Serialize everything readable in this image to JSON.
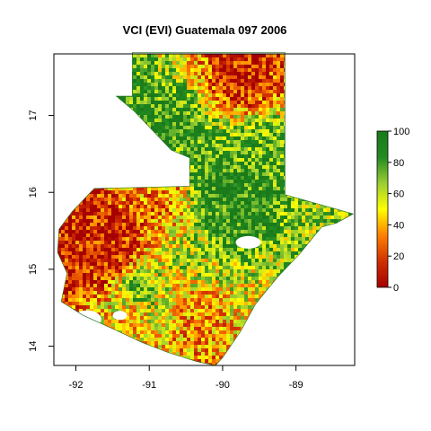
{
  "title": "VCI (EVI) Guatemala 097 2006",
  "x_axis": {
    "ticks": [
      {
        "value": -92,
        "label": "-92"
      },
      {
        "value": -91,
        "label": "-91"
      },
      {
        "value": -90,
        "label": "-90"
      },
      {
        "value": -89,
        "label": "-89"
      }
    ],
    "range": [
      -92.3,
      -88.2
    ]
  },
  "y_axis": {
    "ticks": [
      {
        "value": 14,
        "label": "14"
      },
      {
        "value": 15,
        "label": "15"
      },
      {
        "value": 16,
        "label": "16"
      },
      {
        "value": 17,
        "label": "17"
      }
    ],
    "range": [
      13.75,
      17.8
    ]
  },
  "legend": {
    "labels": [
      "0",
      "20",
      "40",
      "60",
      "80",
      "100"
    ],
    "range": [
      0,
      100
    ],
    "colors": [
      "#a50000",
      "#d13000",
      "#ff8000",
      "#ffff00",
      "#9acd32",
      "#228b22",
      "#1a7a1a"
    ]
  },
  "map": {
    "region": "Guatemala",
    "outline_lonlat": [
      [
        -91.23,
        17.82
      ],
      [
        -89.15,
        17.82
      ],
      [
        -89.15,
        15.97
      ],
      [
        -88.22,
        15.72
      ],
      [
        -88.45,
        15.6
      ],
      [
        -88.65,
        15.55
      ],
      [
        -88.95,
        15.2
      ],
      [
        -89.25,
        14.9
      ],
      [
        -89.55,
        14.55
      ],
      [
        -89.75,
        14.2
      ],
      [
        -90.0,
        13.85
      ],
      [
        -90.1,
        13.75
      ],
      [
        -90.35,
        13.8
      ],
      [
        -90.75,
        13.92
      ],
      [
        -91.1,
        14.05
      ],
      [
        -91.55,
        14.25
      ],
      [
        -91.9,
        14.4
      ],
      [
        -92.2,
        14.58
      ],
      [
        -92.12,
        14.95
      ],
      [
        -92.25,
        15.22
      ],
      [
        -92.23,
        15.52
      ],
      [
        -92.05,
        15.75
      ],
      [
        -91.75,
        16.05
      ],
      [
        -90.45,
        16.08
      ],
      [
        -90.45,
        16.45
      ],
      [
        -90.7,
        16.55
      ],
      [
        -91.2,
        17.05
      ],
      [
        -91.45,
        17.25
      ],
      [
        -90.98,
        17.25
      ],
      [
        -90.98,
        17.25
      ],
      [
        -91.23,
        17.25
      ]
    ],
    "zones": [
      {
        "lon": -89.75,
        "lat": 17.45,
        "r": 0.55,
        "vci": 12
      },
      {
        "lon": -91.55,
        "lat": 15.25,
        "r": 0.6,
        "vci": 10
      },
      {
        "lon": -91.7,
        "lat": 15.05,
        "r": 0.45,
        "vci": 15
      },
      {
        "lon": -90.35,
        "lat": 14.45,
        "r": 0.45,
        "vci": 35
      },
      {
        "lon": -91.3,
        "lat": 14.45,
        "r": 0.4,
        "vci": 45
      },
      {
        "lon": -89.4,
        "lat": 14.7,
        "r": 0.35,
        "vci": 55
      },
      {
        "lon": -90.1,
        "lat": 16.05,
        "r": 0.6,
        "vci": 90
      },
      {
        "lon": -90.7,
        "lat": 16.9,
        "r": 0.55,
        "vci": 85
      },
      {
        "lon": -89.55,
        "lat": 16.6,
        "r": 0.45,
        "vci": 80
      },
      {
        "lon": -89.9,
        "lat": 15.55,
        "r": 0.5,
        "vci": 88
      },
      {
        "lon": -88.8,
        "lat": 15.45,
        "r": 0.4,
        "vci": 68
      },
      {
        "lon": -90.85,
        "lat": 15.9,
        "r": 0.35,
        "vci": 30
      },
      {
        "lon": -91.2,
        "lat": 14.75,
        "r": 0.35,
        "vci": 75
      },
      {
        "lon": -90.3,
        "lat": 15.15,
        "r": 0.4,
        "vci": 60
      }
    ]
  }
}
